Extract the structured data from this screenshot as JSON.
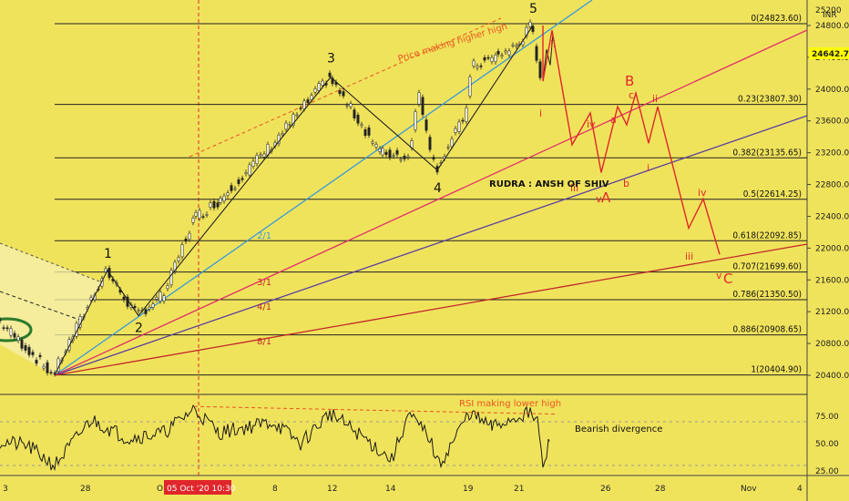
{
  "chart_data": {
    "type": "line",
    "price_axis": {
      "unit": "INR",
      "ticks": [
        20400,
        20800,
        21200,
        21600,
        22000,
        22400,
        22800,
        23200,
        23600,
        24000,
        24400,
        24800
      ],
      "top_tick_partial": "25200",
      "current_price": "24642.70",
      "ylim": [
        20000,
        25300
      ]
    },
    "rsi_axis": {
      "ticks": [
        "75.00",
        "50.00",
        "25.00"
      ],
      "ylim": [
        18,
        95
      ],
      "overbought": 70,
      "oversold": 30
    },
    "time_axis": {
      "ticks": [
        "3",
        "28",
        "O",
        "8",
        "12",
        "14",
        "19",
        "21",
        "26",
        "28",
        "Nov",
        "4"
      ],
      "highlight": "05 Oct '20   10:30"
    },
    "fib_levels": [
      {
        "ratio": "0",
        "price": 24823.6,
        "label": "0(24823.60)"
      },
      {
        "ratio": "0.23",
        "price": 23807.3,
        "label": "0.23(23807.30)"
      },
      {
        "ratio": "0.382",
        "price": 23135.65,
        "label": "0.382(23135.65)"
      },
      {
        "ratio": "0.5",
        "price": 22614.25,
        "label": "0.5(22614.25)"
      },
      {
        "ratio": "0.618",
        "price": 22092.85,
        "label": "0.618(22092.85)"
      },
      {
        "ratio": "0.707",
        "price": 21699.6,
        "label": "0.707(21699.60)"
      },
      {
        "ratio": "0.786",
        "price": 21350.5,
        "label": "0.786(21350.50)"
      },
      {
        "ratio": "0.886",
        "price": 20908.65,
        "label": "0.886(20908.65)"
      },
      {
        "ratio": "1",
        "price": 20404.9,
        "label": "1(20404.90)"
      }
    ],
    "gann_labels": [
      "2/1",
      "3/1",
      "4/1",
      "8/1"
    ],
    "elliott_waves": [
      {
        "label": "1",
        "price": 21720
      },
      {
        "label": "2",
        "price": 21150
      },
      {
        "label": "3",
        "price": 24150
      },
      {
        "label": "4",
        "price": 22980
      },
      {
        "label": "5",
        "price": 24800
      }
    ],
    "projection": {
      "path_prices": [
        24800,
        24100,
        24740,
        23300,
        23700,
        22950,
        23780,
        23550,
        23950,
        23320,
        23780,
        22250,
        22620,
        21920
      ],
      "labels_red": [
        "B",
        "C",
        "A"
      ],
      "labels_small": [
        "ii",
        "i",
        "iv",
        "a",
        "c",
        "ii",
        "iii",
        "v",
        "b",
        "i",
        "iv",
        "iii",
        "v"
      ]
    },
    "annotations": {
      "higher_high": "Price making higher high",
      "rsi_lower_high": "RSI making lower high",
      "bearish": "Bearish divergence",
      "author": "RUDRA : ANSH OF SHIV"
    }
  }
}
